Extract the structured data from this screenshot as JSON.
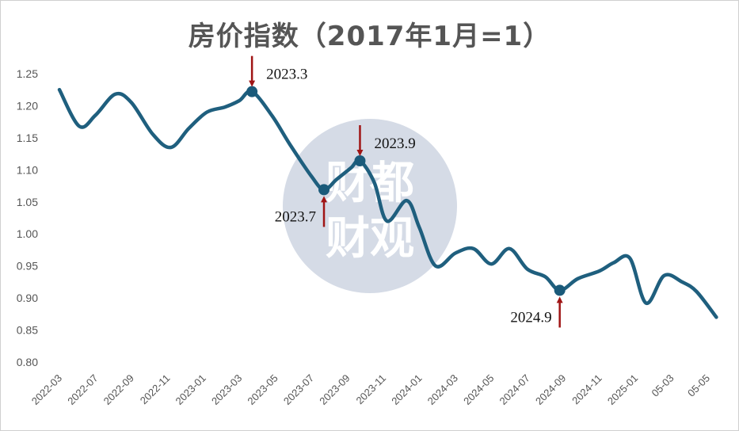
{
  "chart_data": {
    "type": "line",
    "title": "房价指数（2017年1月=1）",
    "xlabel": "",
    "ylabel": "",
    "ylim": [
      0.8,
      1.25
    ],
    "y_ticks": [
      "0.80",
      "0.85",
      "0.90",
      "0.95",
      "1.00",
      "1.05",
      "1.10",
      "1.15",
      "1.20",
      "1.25"
    ],
    "x_tick_labels": [
      "2022-03",
      "2022-07",
      "2022-09",
      "2022-11",
      "2023-01",
      "2023-03",
      "2023-05",
      "2023-07",
      "2023-09",
      "2023-11",
      "2024-01",
      "2024-03",
      "2024-05",
      "2024-07",
      "2024-09",
      "2024-11",
      "2025-01",
      "05-03",
      "05-05"
    ],
    "grid": false,
    "legend": "none",
    "line_color": "#1f5f7e",
    "marker_color": "#1a5a7a",
    "arrow_color": "#a01515",
    "series": [
      {
        "name": "",
        "points": [
          {
            "x": 0.0,
            "y": 1.225
          },
          {
            "x": 0.55,
            "y": 1.168
          },
          {
            "x": 1.0,
            "y": 1.185
          },
          {
            "x": 1.55,
            "y": 1.218
          },
          {
            "x": 2.0,
            "y": 1.205
          },
          {
            "x": 2.6,
            "y": 1.155
          },
          {
            "x": 3.1,
            "y": 1.135
          },
          {
            "x": 3.6,
            "y": 1.165
          },
          {
            "x": 4.1,
            "y": 1.19
          },
          {
            "x": 4.6,
            "y": 1.198
          },
          {
            "x": 5.0,
            "y": 1.208
          },
          {
            "x": 5.35,
            "y": 1.222
          },
          {
            "x": 5.9,
            "y": 1.185
          },
          {
            "x": 6.4,
            "y": 1.14
          },
          {
            "x": 7.0,
            "y": 1.09
          },
          {
            "x": 7.35,
            "y": 1.069
          },
          {
            "x": 7.7,
            "y": 1.085
          },
          {
            "x": 8.1,
            "y": 1.103
          },
          {
            "x": 8.35,
            "y": 1.114
          },
          {
            "x": 8.75,
            "y": 1.08
          },
          {
            "x": 9.1,
            "y": 1.02
          },
          {
            "x": 9.65,
            "y": 1.052
          },
          {
            "x": 10.0,
            "y": 1.01
          },
          {
            "x": 10.45,
            "y": 0.95
          },
          {
            "x": 11.0,
            "y": 0.97
          },
          {
            "x": 11.5,
            "y": 0.977
          },
          {
            "x": 12.0,
            "y": 0.953
          },
          {
            "x": 12.5,
            "y": 0.977
          },
          {
            "x": 13.0,
            "y": 0.945
          },
          {
            "x": 13.5,
            "y": 0.933
          },
          {
            "x": 13.9,
            "y": 0.912
          },
          {
            "x": 14.4,
            "y": 0.93
          },
          {
            "x": 15.0,
            "y": 0.942
          },
          {
            "x": 15.4,
            "y": 0.955
          },
          {
            "x": 15.85,
            "y": 0.962
          },
          {
            "x": 16.3,
            "y": 0.892
          },
          {
            "x": 16.8,
            "y": 0.935
          },
          {
            "x": 17.3,
            "y": 0.925
          },
          {
            "x": 17.7,
            "y": 0.91
          },
          {
            "x": 18.25,
            "y": 0.87
          }
        ]
      }
    ],
    "highlighted_points": [
      {
        "label": "2023.3",
        "x": 5.35,
        "y": 1.222,
        "arrow": "down",
        "label_side": "right"
      },
      {
        "label": "2023.7",
        "x": 7.35,
        "y": 1.069,
        "arrow": "up",
        "label_side": "left"
      },
      {
        "label": "2023.9",
        "x": 8.35,
        "y": 1.114,
        "arrow": "down",
        "label_side": "right"
      },
      {
        "label": "2024.9",
        "x": 13.9,
        "y": 0.912,
        "arrow": "up",
        "label_side": "left"
      }
    ]
  },
  "watermark": {
    "line1": "财都",
    "line2": "财观",
    "circle_color": "#d5dbe6"
  }
}
